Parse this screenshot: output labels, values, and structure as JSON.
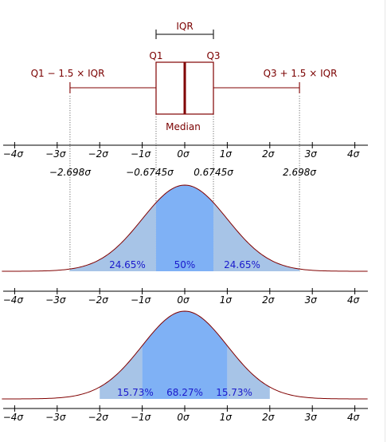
{
  "colors": {
    "box_stroke": "#800000",
    "median_line": "#800000",
    "iqr_bracket": "#333333",
    "curve_stroke": "#800000",
    "fill_outer": "#a7c4e7",
    "fill_inner": "#7fb1f5",
    "pct_text": "#1a1acc"
  },
  "boxplot": {
    "iqr_label": "IQR",
    "q1_label": "Q1",
    "q3_label": "Q3",
    "median_label": "Median",
    "lower_fence_label": "Q1 − 1.5 × IQR",
    "upper_fence_label": "Q3 + 1.5 × IQR",
    "q1": -0.6745,
    "q3": 0.6745,
    "median": 0,
    "lower_fence": -2.698,
    "upper_fence": 2.698
  },
  "quantile_labels": {
    "outer_left": "−2.698σ",
    "inner_left": "−0.6745σ",
    "inner_right": "0.6745σ",
    "outer_right": "2.698σ"
  },
  "chart_data": [
    {
      "type": "area",
      "panel": "iqr-normal-curve",
      "distribution": "normal",
      "xlim": [
        -4,
        4
      ],
      "x_ticks": [
        "−4σ",
        "−3σ",
        "−2σ",
        "−1σ",
        "0σ",
        "1σ",
        "2σ",
        "3σ",
        "4σ"
      ],
      "regions": [
        {
          "from": -2.698,
          "to": -0.6745,
          "label": "24.65%",
          "value": 24.65
        },
        {
          "from": -0.6745,
          "to": 0.6745,
          "label": "50%",
          "value": 50
        },
        {
          "from": 0.6745,
          "to": 2.698,
          "label": "24.65%",
          "value": 24.65
        }
      ]
    },
    {
      "type": "area",
      "panel": "sigma-normal-curve",
      "distribution": "normal",
      "xlim": [
        -4,
        4
      ],
      "x_ticks": [
        "−4σ",
        "−3σ",
        "−2σ",
        "−1σ",
        "0σ",
        "1σ",
        "2σ",
        "3σ",
        "4σ"
      ],
      "regions": [
        {
          "from": -2,
          "to": -1,
          "label": "15.73%",
          "value": 15.73
        },
        {
          "from": -1,
          "to": 1,
          "label": "68.27%",
          "value": 68.27
        },
        {
          "from": 1,
          "to": 2,
          "label": "15.73%",
          "value": 15.73
        }
      ]
    }
  ]
}
